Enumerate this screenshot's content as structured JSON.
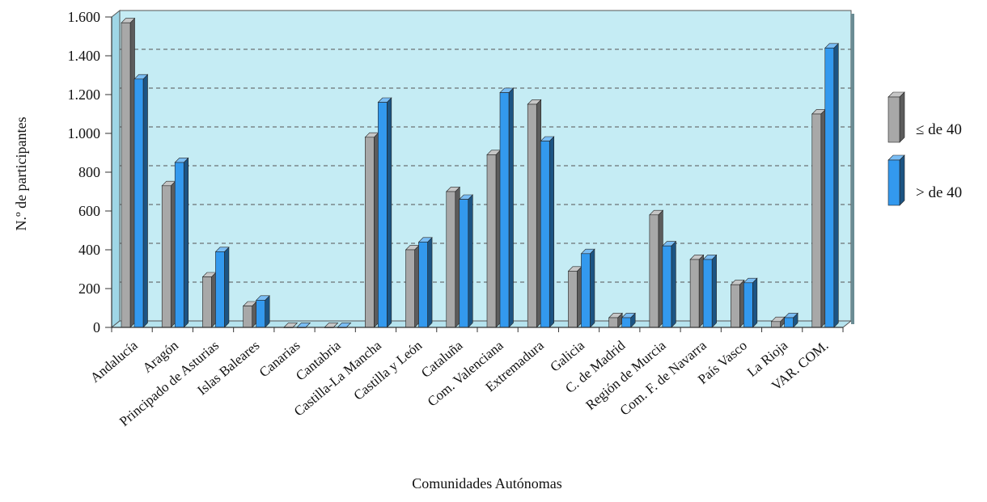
{
  "chart_data": {
    "type": "bar",
    "title": "",
    "xlabel": "Comunidades Autónomas",
    "ylabel": "N.º de participantes",
    "ylim": [
      0,
      1600
    ],
    "yticks": [
      0,
      200,
      400,
      600,
      800,
      1000,
      1200,
      1400,
      1600
    ],
    "ytick_labels": [
      "0",
      "200",
      "400",
      "600",
      "800",
      "1.000",
      "1.200",
      "1.400",
      "1.600"
    ],
    "grid": true,
    "legend_position": "right",
    "categories": [
      "Andalucía",
      "Aragón",
      "Principado de Asturias",
      "Islas Baleares",
      "Canarias",
      "Cantabria",
      "Castilla-La Mancha",
      "Castilla y León",
      "Cataluña",
      "Com. Valenciana",
      "Extremadura",
      "Galicia",
      "C. de Madrid",
      "Región de Murcia",
      "Com. F. de Navarra",
      "País Vasco",
      "La Rioja",
      "VAR. COM."
    ],
    "series": [
      {
        "name": "≤ de 40",
        "color": "#a8a8a8",
        "values": [
          1570,
          730,
          260,
          110,
          0,
          0,
          980,
          400,
          700,
          890,
          1150,
          290,
          50,
          580,
          350,
          220,
          30,
          1100
        ]
      },
      {
        "name": "> de 40",
        "color": "#3399ee",
        "values": [
          1280,
          850,
          390,
          140,
          0,
          0,
          1160,
          440,
          660,
          1210,
          960,
          380,
          50,
          420,
          350,
          230,
          50,
          1440
        ]
      }
    ],
    "colors": {
      "plot_background": "#c5ecf4",
      "gridline": "#555555"
    }
  }
}
